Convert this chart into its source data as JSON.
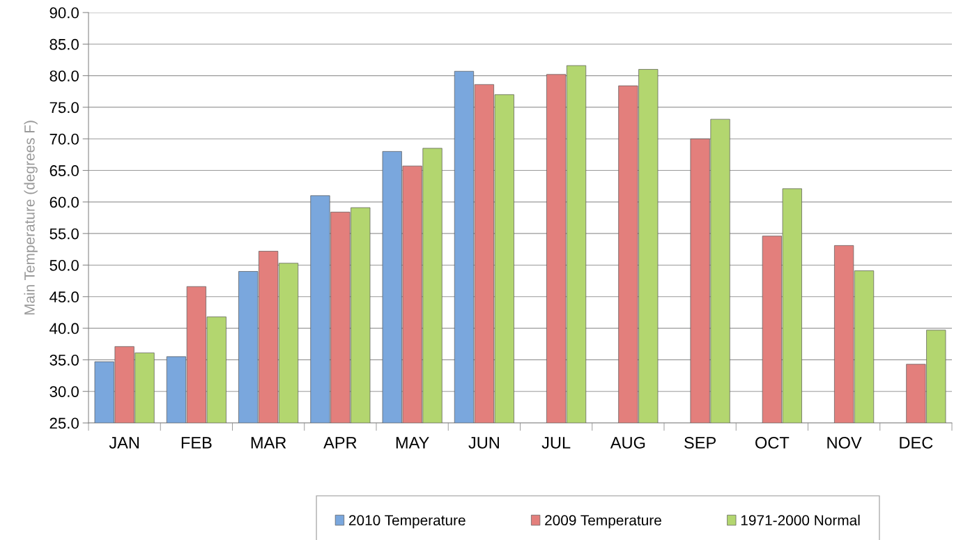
{
  "chart_data": {
    "type": "bar",
    "ylabel": "Main Temperature (degrees F)",
    "categories": [
      "JAN",
      "FEB",
      "MAR",
      "APR",
      "MAY",
      "JUN",
      "JUL",
      "AUG",
      "SEP",
      "OCT",
      "NOV",
      "DEC"
    ],
    "series": [
      {
        "name": "2010 Temperature",
        "color": "#7aa7dd",
        "values": [
          34.7,
          35.5,
          49.0,
          61.0,
          68.0,
          80.7,
          null,
          null,
          null,
          null,
          null,
          null
        ]
      },
      {
        "name": "2009 Temperature",
        "color": "#e37f7c",
        "values": [
          37.1,
          46.6,
          52.2,
          58.4,
          65.7,
          78.6,
          80.2,
          78.4,
          70.0,
          54.6,
          53.1,
          34.3
        ]
      },
      {
        "name": "1971-2000 Normal",
        "color": "#b3d66f",
        "values": [
          36.1,
          41.8,
          50.3,
          59.1,
          68.5,
          77.0,
          81.6,
          81.0,
          73.1,
          62.1,
          49.1,
          39.7
        ]
      }
    ],
    "ylim": [
      25,
      90
    ],
    "yticks": [
      {
        "value": 25,
        "label": "25.0"
      },
      {
        "value": 30,
        "label": "30.0"
      },
      {
        "value": 35,
        "label": "35.0"
      },
      {
        "value": 40,
        "label": "40.0"
      },
      {
        "value": 45,
        "label": "45.0"
      },
      {
        "value": 50,
        "label": "50.0"
      },
      {
        "value": 55,
        "label": "55.0"
      },
      {
        "value": 60,
        "label": "60.0"
      },
      {
        "value": 65,
        "label": "65.0"
      },
      {
        "value": 70,
        "label": "70.0"
      },
      {
        "value": 75,
        "label": "75.0"
      },
      {
        "value": 80,
        "label": "80.0"
      },
      {
        "value": 85,
        "label": "85.0"
      },
      {
        "value": 90,
        "label": "90.0"
      }
    ],
    "grid": "y",
    "legend": "bottom"
  }
}
